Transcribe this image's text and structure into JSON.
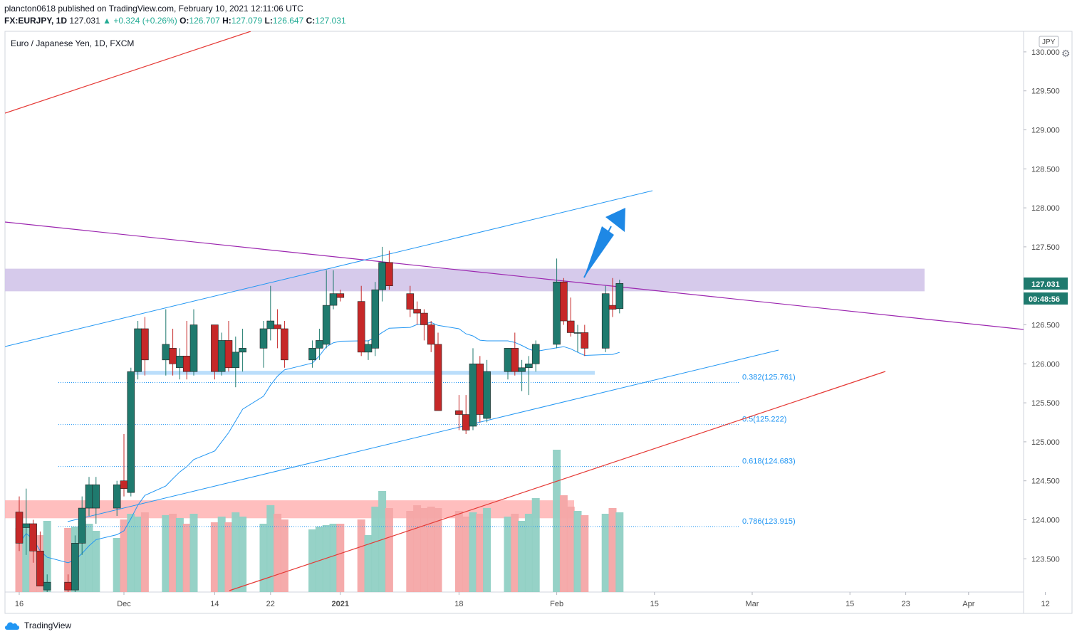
{
  "header": {
    "publisher": "plancton0618 published on TradingView.com, February 10, 2021 12:11:06 UTC",
    "symbol": "FX:EURJPY, 1D",
    "last": "127.031",
    "change": "▲ +0.324 (+0.26%)",
    "open_label": "O:",
    "open": "126.707",
    "high_label": "H:",
    "high": "127.079",
    "low_label": "L:",
    "low": "126.647",
    "close_label": "C:",
    "close": "127.031"
  },
  "footer": {
    "brand": "TradingView"
  },
  "colors": {
    "up": "#1f7a6e",
    "down": "#c62828",
    "vol_up": "#90d0c4",
    "vol_down": "#f4a6a6",
    "ma": "#2196f3",
    "channel": "#2196f3",
    "trend_red": "#e53935",
    "trend_purple": "#9c27b0",
    "zone_purple": "#d1c4e9",
    "zone_red": "#ffb3b3",
    "zone_blue": "#bbdefb",
    "arrow": "#1e88e5",
    "price_tag": "#1f7a6e"
  },
  "chart_data": {
    "type": "candlestick",
    "title": "Euro / Japanese Yen, 1D, FXCM",
    "currency": "JPY",
    "y_axis": {
      "ylim": [
        123.1,
        130.2
      ],
      "ticks": [
        "130.000",
        "129.500",
        "129.000",
        "128.500",
        "128.000",
        "127.500",
        "127.000",
        "126.500",
        "126.000",
        "125.500",
        "125.000",
        "124.500",
        "124.000",
        "123.500"
      ]
    },
    "x_axis": {
      "ticks": [
        {
          "label": "16",
          "date": "2020-11-16"
        },
        {
          "label": "Dec",
          "date": "2020-12-01"
        },
        {
          "label": "14",
          "date": "2020-12-14"
        },
        {
          "label": "22",
          "date": "2020-12-22"
        },
        {
          "label": "2021",
          "date": "2021-01-01"
        },
        {
          "label": "18",
          "date": "2021-01-18"
        },
        {
          "label": "Feb",
          "date": "2021-02-01"
        },
        {
          "label": "15",
          "date": "2021-02-15"
        },
        {
          "label": "Mar",
          "date": "2021-03-01"
        },
        {
          "label": "15",
          "date": "2021-03-15"
        },
        {
          "label": "23",
          "date": "2021-03-23"
        },
        {
          "label": "Apr",
          "date": "2021-04-01"
        },
        {
          "label": "12",
          "date": "2021-04-12"
        }
      ]
    },
    "candles": [
      {
        "date": "2020-11-16",
        "o": 124.1,
        "h": 124.3,
        "l": 123.6,
        "c": 123.7,
        "v": 0.45
      },
      {
        "date": "2020-11-17",
        "o": 123.9,
        "h": 124.4,
        "l": 123.55,
        "c": 123.95,
        "v": 0.47
      },
      {
        "date": "2020-11-18",
        "o": 123.95,
        "h": 124.0,
        "l": 123.45,
        "c": 123.6,
        "v": 0.44
      },
      {
        "date": "2020-11-19",
        "o": 123.6,
        "h": 123.85,
        "l": 123.15,
        "c": 123.15,
        "v": 0.4
      },
      {
        "date": "2020-11-20",
        "o": 123.1,
        "h": 123.3,
        "l": 122.9,
        "c": 123.2,
        "v": 0.5
      },
      {
        "date": "2020-11-23",
        "o": 123.2,
        "h": 123.3,
        "l": 122.95,
        "c": 123.1,
        "v": 0.45
      },
      {
        "date": "2020-11-24",
        "o": 123.1,
        "h": 123.8,
        "l": 123.05,
        "c": 123.7,
        "v": 0.46
      },
      {
        "date": "2020-11-25",
        "o": 123.7,
        "h": 124.3,
        "l": 123.55,
        "c": 124.15,
        "v": 0.5
      },
      {
        "date": "2020-11-26",
        "o": 124.15,
        "h": 124.55,
        "l": 124.05,
        "c": 124.45,
        "v": 0.48
      },
      {
        "date": "2020-11-27",
        "o": 124.15,
        "h": 124.55,
        "l": 123.95,
        "c": 124.45,
        "v": 0.43
      },
      {
        "date": "2020-11-30",
        "o": 124.15,
        "h": 124.5,
        "l": 124.05,
        "c": 124.45,
        "v": 0.38
      },
      {
        "date": "2020-12-01",
        "o": 124.5,
        "h": 125.1,
        "l": 124.3,
        "c": 124.4,
        "v": 0.51
      },
      {
        "date": "2020-12-02",
        "o": 124.35,
        "h": 125.95,
        "l": 124.3,
        "c": 125.9,
        "v": 0.55
      },
      {
        "date": "2020-12-03",
        "o": 125.9,
        "h": 126.55,
        "l": 125.8,
        "c": 126.45,
        "v": 0.53
      },
      {
        "date": "2020-12-04",
        "o": 126.45,
        "h": 126.6,
        "l": 125.85,
        "c": 126.05,
        "v": 0.56
      },
      {
        "date": "2020-12-07",
        "o": 126.05,
        "h": 126.7,
        "l": 125.85,
        "c": 126.25,
        "v": 0.54
      },
      {
        "date": "2020-12-08",
        "o": 126.2,
        "h": 126.45,
        "l": 125.85,
        "c": 126.0,
        "v": 0.55
      },
      {
        "date": "2020-12-09",
        "o": 125.95,
        "h": 126.2,
        "l": 125.8,
        "c": 126.1,
        "v": 0.52
      },
      {
        "date": "2020-12-10",
        "o": 126.1,
        "h": 126.55,
        "l": 125.8,
        "c": 125.9,
        "v": 0.48
      },
      {
        "date": "2020-12-11",
        "o": 125.9,
        "h": 126.7,
        "l": 125.85,
        "c": 126.5,
        "v": 0.55
      },
      {
        "date": "2020-12-14",
        "o": 126.5,
        "h": 126.5,
        "l": 125.8,
        "c": 125.9,
        "v": 0.49
      },
      {
        "date": "2020-12-15",
        "o": 125.9,
        "h": 126.4,
        "l": 125.85,
        "c": 126.3,
        "v": 0.53
      },
      {
        "date": "2020-12-16",
        "o": 126.3,
        "h": 126.55,
        "l": 125.9,
        "c": 125.95,
        "v": 0.49
      },
      {
        "date": "2020-12-17",
        "o": 125.95,
        "h": 126.35,
        "l": 125.7,
        "c": 126.15,
        "v": 0.56
      },
      {
        "date": "2020-12-18",
        "o": 126.15,
        "h": 126.45,
        "l": 125.9,
        "c": 126.2,
        "v": 0.53
      },
      {
        "date": "2020-12-21",
        "o": 126.2,
        "h": 126.55,
        "l": 125.95,
        "c": 126.45,
        "v": 0.48
      },
      {
        "date": "2020-12-22",
        "o": 126.45,
        "h": 127.0,
        "l": 126.3,
        "c": 126.55,
        "v": 0.61
      },
      {
        "date": "2020-12-23",
        "o": 126.5,
        "h": 126.7,
        "l": 126.2,
        "c": 126.45,
        "v": 0.55
      },
      {
        "date": "2020-12-24",
        "o": 126.45,
        "h": 126.55,
        "l": 125.95,
        "c": 126.05,
        "v": 0.51
      },
      {
        "date": "2020-12-28",
        "o": 126.05,
        "h": 126.3,
        "l": 125.95,
        "c": 126.2,
        "v": 0.44
      },
      {
        "date": "2020-12-29",
        "o": 126.2,
        "h": 126.45,
        "l": 126.05,
        "c": 126.3,
        "v": 0.46
      },
      {
        "date": "2020-12-30",
        "o": 126.25,
        "h": 127.2,
        "l": 126.2,
        "c": 126.75,
        "v": 0.47
      },
      {
        "date": "2020-12-31",
        "o": 126.75,
        "h": 127.2,
        "l": 126.7,
        "c": 126.9,
        "v": 0.48
      },
      {
        "date": "2021-01-01",
        "o": 126.9,
        "h": 126.95,
        "l": 126.8,
        "c": 126.85,
        "v": 0.48
      },
      {
        "date": "2021-01-04",
        "o": 126.8,
        "h": 127.0,
        "l": 126.1,
        "c": 126.15,
        "v": 0.51
      },
      {
        "date": "2021-01-05",
        "o": 126.15,
        "h": 126.3,
        "l": 126.05,
        "c": 126.25,
        "v": 0.4
      },
      {
        "date": "2021-01-06",
        "o": 126.2,
        "h": 127.05,
        "l": 126.1,
        "c": 126.95,
        "v": 0.6
      },
      {
        "date": "2021-01-07",
        "o": 126.95,
        "h": 127.5,
        "l": 126.8,
        "c": 127.3,
        "v": 0.71
      },
      {
        "date": "2021-01-08",
        "o": 127.3,
        "h": 127.45,
        "l": 126.95,
        "c": 127.0,
        "v": 0.59
      },
      {
        "date": "2021-01-11",
        "o": 126.9,
        "h": 127.0,
        "l": 126.6,
        "c": 126.7,
        "v": 0.57
      },
      {
        "date": "2021-01-12",
        "o": 126.7,
        "h": 126.8,
        "l": 126.5,
        "c": 126.65,
        "v": 0.61
      },
      {
        "date": "2021-01-13",
        "o": 126.65,
        "h": 126.7,
        "l": 126.3,
        "c": 126.5,
        "v": 0.59
      },
      {
        "date": "2021-01-14",
        "o": 126.5,
        "h": 126.55,
        "l": 126.15,
        "c": 126.25,
        "v": 0.6
      },
      {
        "date": "2021-01-15",
        "o": 126.25,
        "h": 126.4,
        "l": 125.4,
        "c": 125.4,
        "v": 0.59
      },
      {
        "date": "2021-01-18",
        "o": 125.4,
        "h": 125.6,
        "l": 125.15,
        "c": 125.35,
        "v": 0.57
      },
      {
        "date": "2021-01-19",
        "o": 125.35,
        "h": 125.6,
        "l": 125.1,
        "c": 125.15,
        "v": 0.53
      },
      {
        "date": "2021-01-20",
        "o": 125.2,
        "h": 126.2,
        "l": 125.15,
        "c": 126.0,
        "v": 0.56
      },
      {
        "date": "2021-01-21",
        "o": 126.0,
        "h": 126.1,
        "l": 125.25,
        "c": 125.35,
        "v": 0.55
      },
      {
        "date": "2021-01-22",
        "o": 125.3,
        "h": 126.05,
        "l": 125.25,
        "c": 125.9,
        "v": 0.59
      },
      {
        "date": "2021-01-25",
        "o": 125.9,
        "h": 126.2,
        "l": 125.8,
        "c": 126.2,
        "v": 0.53
      },
      {
        "date": "2021-01-26",
        "o": 126.2,
        "h": 126.4,
        "l": 125.85,
        "c": 125.9,
        "v": 0.55
      },
      {
        "date": "2021-01-27",
        "o": 125.9,
        "h": 126.05,
        "l": 125.65,
        "c": 125.95,
        "v": 0.5
      },
      {
        "date": "2021-01-28",
        "o": 125.95,
        "h": 126.1,
        "l": 125.6,
        "c": 126.0,
        "v": 0.55
      },
      {
        "date": "2021-01-29",
        "o": 126.0,
        "h": 126.3,
        "l": 125.9,
        "c": 126.25,
        "v": 0.66
      },
      {
        "date": "2021-02-01",
        "o": 126.25,
        "h": 127.35,
        "l": 126.2,
        "c": 127.05,
        "v": 1.0
      },
      {
        "date": "2021-02-02",
        "o": 127.05,
        "h": 127.1,
        "l": 126.5,
        "c": 126.55,
        "v": 0.68
      },
      {
        "date": "2021-02-03",
        "o": 126.55,
        "h": 126.85,
        "l": 126.35,
        "c": 126.4,
        "v": 0.6
      },
      {
        "date": "2021-02-04",
        "o": 126.4,
        "h": 126.5,
        "l": 126.15,
        "c": 126.4,
        "v": 0.57
      },
      {
        "date": "2021-02-05",
        "o": 126.4,
        "h": 126.5,
        "l": 126.1,
        "c": 126.2,
        "v": 0.54
      },
      {
        "date": "2021-02-08",
        "o": 126.2,
        "h": 127.0,
        "l": 126.15,
        "c": 126.9,
        "v": 0.55
      },
      {
        "date": "2021-02-09",
        "o": 126.75,
        "h": 127.1,
        "l": 126.6,
        "c": 126.7,
        "v": 0.59
      },
      {
        "date": "2021-02-10",
        "o": 126.707,
        "h": 127.079,
        "l": 126.647,
        "c": 127.031,
        "v": 0.56
      }
    ],
    "ma_label": "",
    "fib_levels": [
      {
        "label": "0.382(125.761)",
        "price": 125.761
      },
      {
        "label": "0.5(125.222)",
        "price": 125.222
      },
      {
        "label": "0.618(124.683)",
        "price": 124.683
      },
      {
        "label": "0.786(123.915)",
        "price": 123.915
      }
    ],
    "last_price_tag": "127.031",
    "countdown_tag": "09:48:56"
  }
}
